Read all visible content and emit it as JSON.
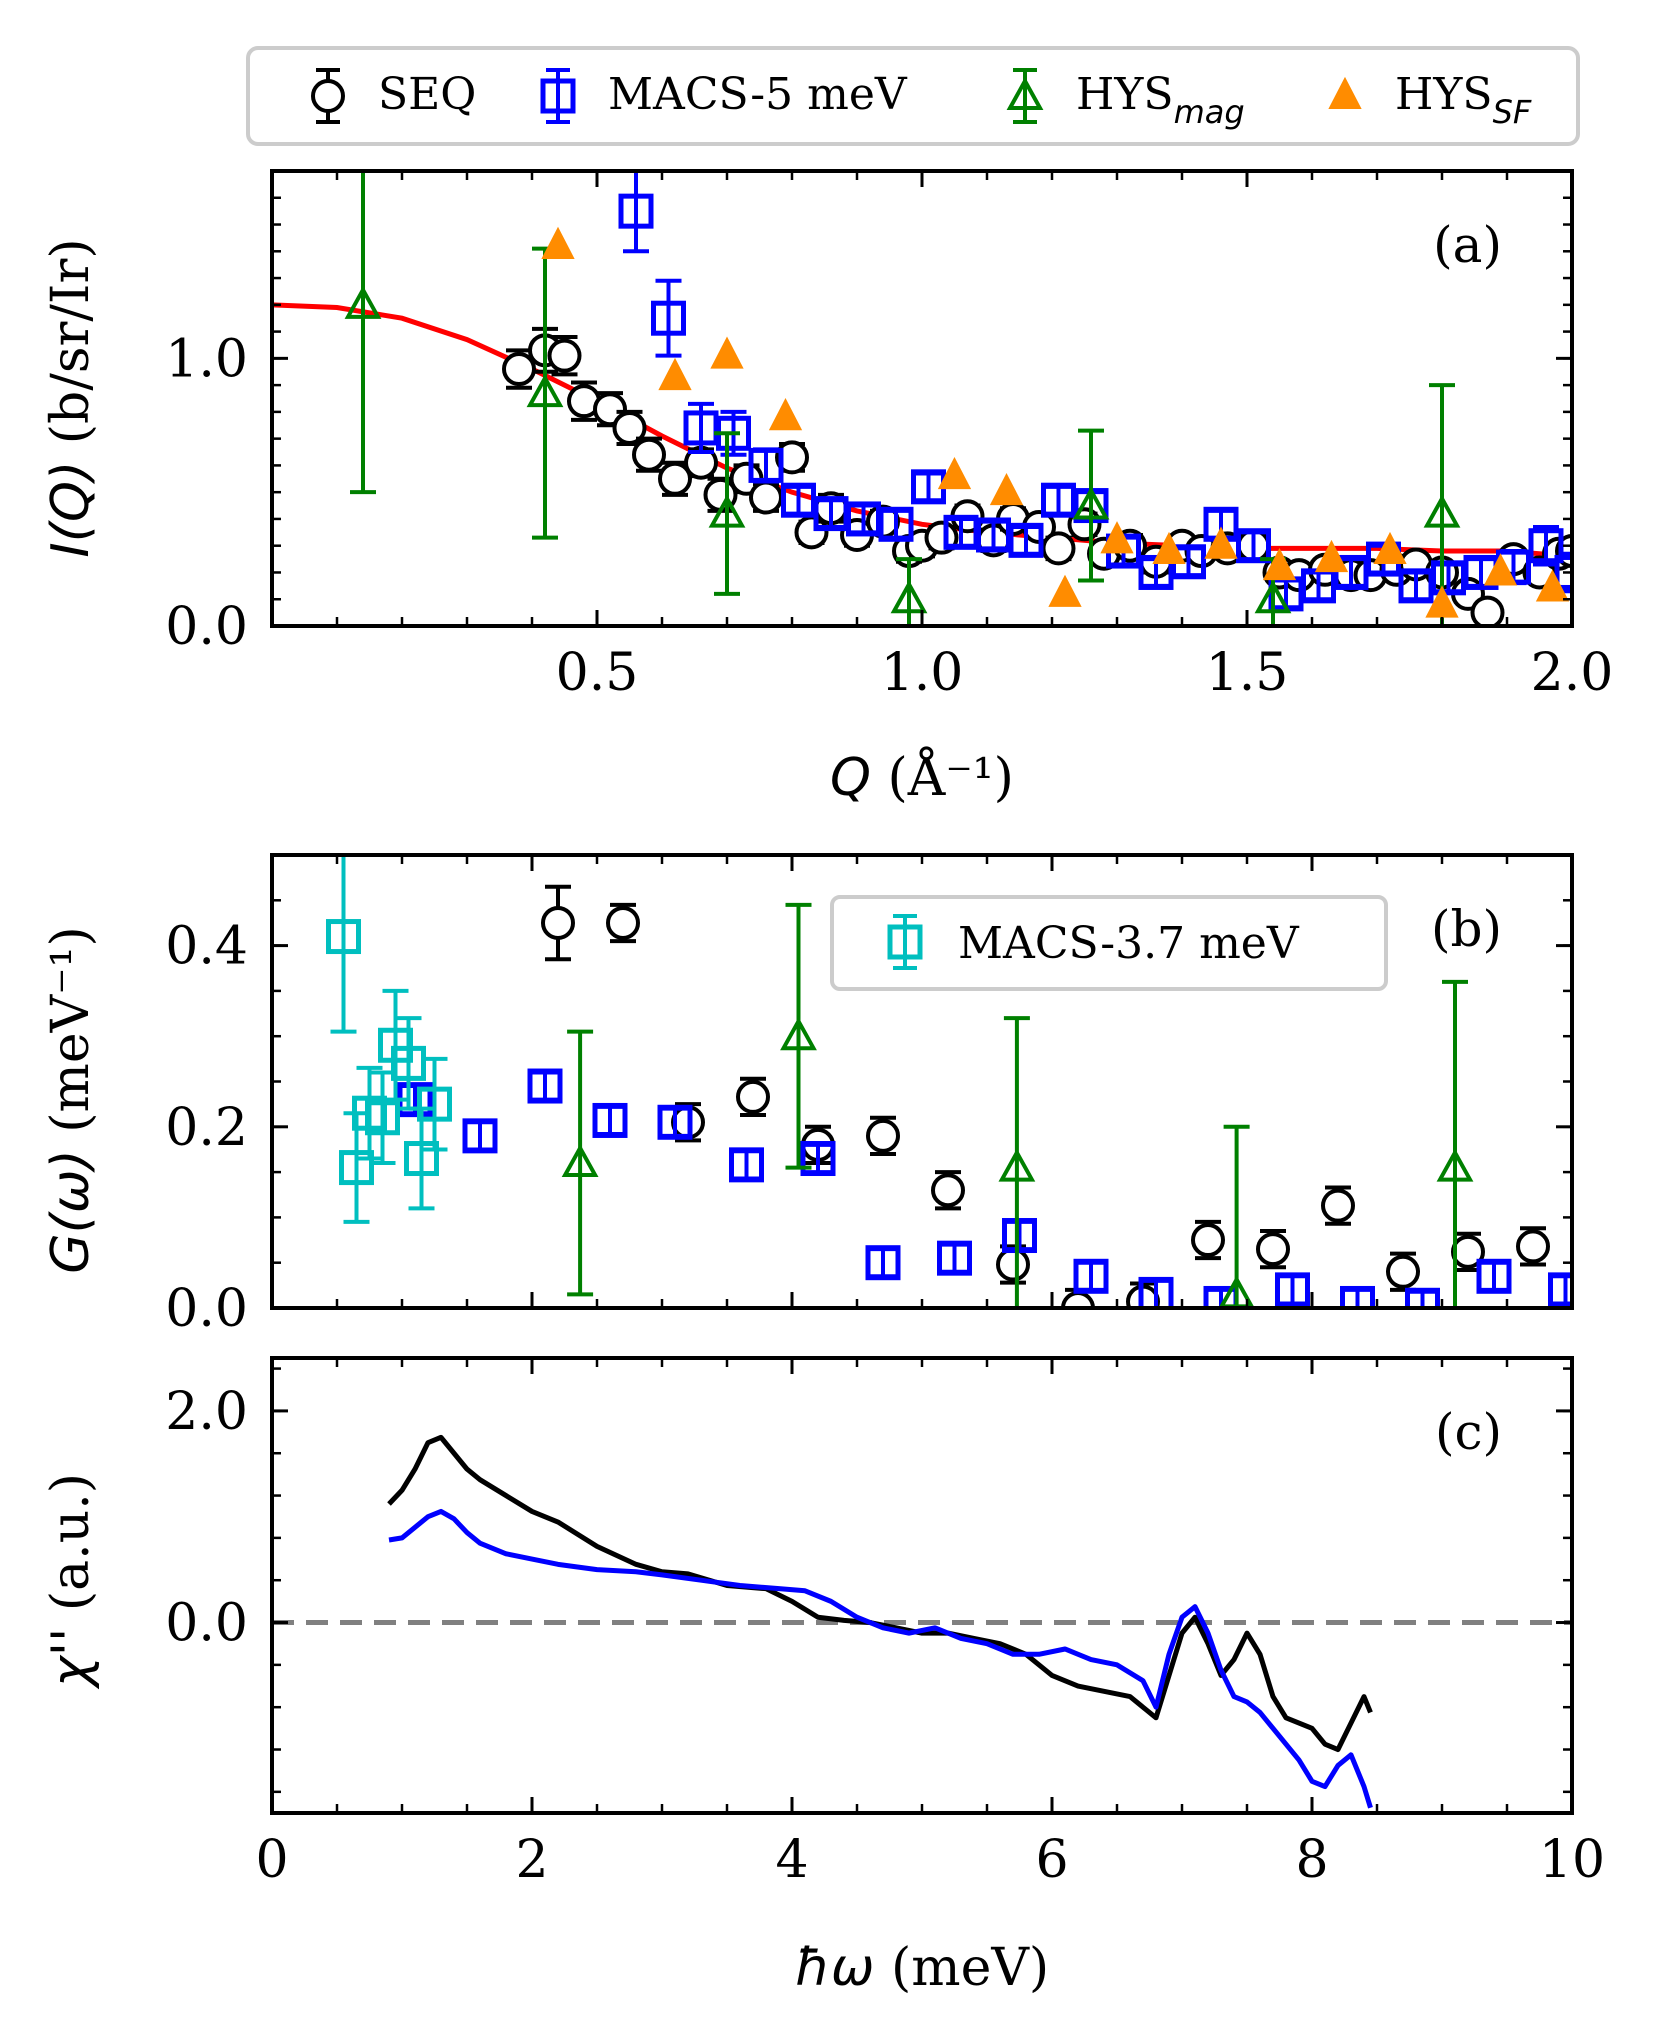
{
  "legend_top": {
    "entries": [
      {
        "label": "SEQ",
        "sub": "",
        "color": "#000000",
        "marker": "circle-open"
      },
      {
        "label": "MACS-5 meV",
        "sub": "",
        "color": "#0000ff",
        "marker": "square-open"
      },
      {
        "label": "HYS",
        "sub": "mag",
        "color": "#008000",
        "marker": "triangle-open"
      },
      {
        "label": "HYS",
        "sub": "SF",
        "color": "#ff8c00",
        "marker": "triangle-filled"
      }
    ]
  },
  "chart_data": [
    {
      "id": "panel-a",
      "type": "scatter",
      "panel_label": "(a)",
      "ylabel_parts": {
        "italic": "I(Q)",
        "rest": " (b/sr/Ir)"
      },
      "xlabel_parts": {
        "italic": "Q",
        "rest": " (Å⁻¹)"
      },
      "xlim": [
        0,
        2.0
      ],
      "ylim": [
        0,
        1.7
      ],
      "xticks": [
        {
          "v": 0.5,
          "label": "0.5"
        },
        {
          "v": 1.0,
          "label": "1.0"
        },
        {
          "v": 1.5,
          "label": "1.5"
        },
        {
          "v": 2.0,
          "label": "2.0"
        }
      ],
      "yticks": [
        {
          "v": 0.0,
          "label": "0.0"
        },
        {
          "v": 1.0,
          "label": "1.0"
        }
      ],
      "series": [
        {
          "name": "SEQ",
          "color": "#000000",
          "marker": "circle-open",
          "x": [
            0.38,
            0.42,
            0.45,
            0.48,
            0.52,
            0.55,
            0.58,
            0.62,
            0.66,
            0.69,
            0.73,
            0.76,
            0.8,
            0.83,
            0.86,
            0.9,
            0.94,
            0.98,
            1.0,
            1.03,
            1.07,
            1.11,
            1.14,
            1.18,
            1.21,
            1.25,
            1.28,
            1.32,
            1.36,
            1.4,
            1.43,
            1.47,
            1.51,
            1.55,
            1.58,
            1.62,
            1.66,
            1.69,
            1.73,
            1.76,
            1.8,
            1.84,
            1.87,
            1.91,
            1.95,
            1.98,
            2.0
          ],
          "y": [
            0.96,
            1.03,
            1.01,
            0.84,
            0.81,
            0.74,
            0.64,
            0.55,
            0.61,
            0.49,
            0.55,
            0.48,
            0.63,
            0.35,
            0.44,
            0.34,
            0.39,
            0.28,
            0.3,
            0.33,
            0.41,
            0.32,
            0.4,
            0.37,
            0.29,
            0.38,
            0.27,
            0.3,
            0.24,
            0.3,
            0.28,
            0.29,
            0.3,
            0.2,
            0.19,
            0.21,
            0.19,
            0.19,
            0.21,
            0.23,
            0.2,
            0.12,
            0.05,
            0.25,
            0.2,
            0.27,
            0.28
          ],
          "err": [
            0.07,
            0.08,
            0.07,
            0.07,
            0.06,
            0.06,
            0.06,
            0.06,
            0.05,
            0.06,
            0.05,
            0.05,
            0.05,
            0.04,
            0.05,
            0.04,
            0.04,
            0.04,
            0.04,
            0.04,
            0.04,
            0.04,
            0.04,
            0.04,
            0.04,
            0.04,
            0.04,
            0.04,
            0.04,
            0.03,
            0.03,
            0.03,
            0.03,
            0.03,
            0.03,
            0.03,
            0.03,
            0.03,
            0.03,
            0.03,
            0.03,
            0.03,
            0.03,
            0.03,
            0.03,
            0.03,
            0.03
          ]
        },
        {
          "name": "MACS-5 meV",
          "color": "#0000ff",
          "marker": "square-open",
          "x": [
            0.56,
            0.61,
            0.66,
            0.71,
            0.76,
            0.81,
            0.86,
            0.91,
            0.96,
            1.01,
            1.06,
            1.11,
            1.16,
            1.21,
            1.26,
            1.31,
            1.36,
            1.41,
            1.46,
            1.51,
            1.56,
            1.61,
            1.66,
            1.71,
            1.76,
            1.81,
            1.86,
            1.91,
            1.96,
            2.0
          ],
          "y": [
            1.55,
            1.15,
            0.74,
            0.72,
            0.6,
            0.47,
            0.42,
            0.4,
            0.38,
            0.52,
            0.35,
            0.34,
            0.32,
            0.47,
            0.45,
            0.28,
            0.2,
            0.24,
            0.38,
            0.3,
            0.12,
            0.15,
            0.2,
            0.25,
            0.15,
            0.18,
            0.2,
            0.22,
            0.3,
            0.2
          ],
          "err": [
            0.15,
            0.14,
            0.09,
            0.08,
            0.06,
            0.05,
            0.05,
            0.05,
            0.05,
            0.05,
            0.05,
            0.05,
            0.05,
            0.05,
            0.05,
            0.05,
            0.05,
            0.05,
            0.05,
            0.05,
            0.05,
            0.05,
            0.05,
            0.05,
            0.05,
            0.05,
            0.05,
            0.06,
            0.07,
            0.07
          ]
        },
        {
          "name": "HYS_mag",
          "color": "#008000",
          "marker": "triangle-open",
          "x": [
            0.14,
            0.42,
            0.7,
            0.98,
            1.26,
            1.54,
            1.8
          ],
          "y": [
            1.2,
            0.87,
            0.42,
            0.1,
            0.45,
            0.1,
            0.42
          ],
          "err": [
            0.7,
            0.54,
            0.3,
            0.15,
            0.28,
            0.15,
            0.48
          ]
        },
        {
          "name": "HYS_SF",
          "color": "#ff8c00",
          "marker": "triangle-filled",
          "x": [
            0.44,
            0.62,
            0.7,
            0.79,
            1.05,
            1.13,
            1.22,
            1.3,
            1.38,
            1.46,
            1.55,
            1.63,
            1.72,
            1.8,
            1.89,
            1.97
          ],
          "y": [
            1.42,
            0.93,
            1.01,
            0.78,
            0.56,
            0.5,
            0.12,
            0.32,
            0.28,
            0.3,
            0.22,
            0.25,
            0.28,
            0.08,
            0.2,
            0.14
          ],
          "err": [
            0.03,
            0.03,
            0.03,
            0.03,
            0.03,
            0.03,
            0.03,
            0.03,
            0.03,
            0.03,
            0.03,
            0.03,
            0.03,
            0.03,
            0.03,
            0.03
          ]
        }
      ],
      "fit": {
        "name": "fit",
        "color": "#ff0000",
        "x": [
          0.0,
          0.1,
          0.2,
          0.3,
          0.4,
          0.5,
          0.6,
          0.7,
          0.8,
          0.9,
          1.0,
          1.1,
          1.2,
          1.3,
          1.4,
          1.5,
          1.6,
          1.7,
          1.8,
          1.9,
          2.0
        ],
        "y": [
          1.2,
          1.19,
          1.15,
          1.07,
          0.96,
          0.84,
          0.71,
          0.59,
          0.5,
          0.43,
          0.38,
          0.35,
          0.33,
          0.31,
          0.3,
          0.29,
          0.29,
          0.29,
          0.28,
          0.28,
          0.26
        ]
      }
    },
    {
      "id": "panel-b",
      "type": "scatter",
      "panel_label": "(b)",
      "ylabel_parts": {
        "italic": "G(ω)",
        "rest": " (meV⁻¹)"
      },
      "xlim": [
        0,
        10
      ],
      "ylim": [
        0,
        0.5
      ],
      "xticks": [
        {
          "v": 2,
          "label": ""
        },
        {
          "v": 4,
          "label": ""
        },
        {
          "v": 6,
          "label": ""
        },
        {
          "v": 8,
          "label": ""
        },
        {
          "v": 10,
          "label": ""
        }
      ],
      "yticks": [
        {
          "v": 0.0,
          "label": "0.0"
        },
        {
          "v": 0.2,
          "label": "0.2"
        },
        {
          "v": 0.4,
          "label": "0.4"
        }
      ],
      "legend": {
        "label": "MACS-3.7 meV",
        "color": "#00bfbf"
      },
      "series": [
        {
          "name": "SEQ",
          "color": "#000000",
          "marker": "circle-open",
          "x": [
            2.2,
            2.7,
            3.2,
            3.7,
            4.2,
            4.7,
            5.2,
            5.7,
            6.2,
            6.7,
            7.2,
            7.7,
            8.2,
            8.7,
            9.2,
            9.7
          ],
          "y": [
            0.425,
            0.425,
            0.205,
            0.233,
            0.18,
            0.19,
            0.13,
            0.048,
            0.0,
            0.007,
            0.075,
            0.065,
            0.113,
            0.04,
            0.062,
            0.068
          ],
          "err": [
            0.04,
            0.02,
            0.02,
            0.02,
            0.02,
            0.02,
            0.02,
            0.02,
            0.02,
            0.02,
            0.02,
            0.02,
            0.02,
            0.02,
            0.02,
            0.02
          ]
        },
        {
          "name": "MACS-5 meV",
          "color": "#0000ff",
          "marker": "square-open",
          "x": [
            1.1,
            1.6,
            2.1,
            2.6,
            3.1,
            3.65,
            4.2,
            4.7,
            5.25,
            5.75,
            6.3,
            6.8,
            7.3,
            7.85,
            8.35,
            8.85,
            9.4,
            9.95
          ],
          "y": [
            0.23,
            0.19,
            0.245,
            0.207,
            0.205,
            0.158,
            0.165,
            0.05,
            0.055,
            0.08,
            0.035,
            0.015,
            0.005,
            0.02,
            0.005,
            0.003,
            0.035,
            0.02
          ],
          "err": [
            0.015,
            0.015,
            0.015,
            0.015,
            0.015,
            0.015,
            0.015,
            0.015,
            0.015,
            0.015,
            0.015,
            0.015,
            0.015,
            0.015,
            0.015,
            0.015,
            0.015,
            0.015
          ]
        },
        {
          "name": "MACS-3.7 meV",
          "color": "#00bfbf",
          "marker": "square-open",
          "x": [
            0.55,
            0.65,
            0.75,
            0.85,
            0.95,
            1.05,
            1.15,
            1.25
          ],
          "y": [
            0.41,
            0.155,
            0.215,
            0.21,
            0.29,
            0.27,
            0.165,
            0.225
          ],
          "err": [
            0.105,
            0.06,
            0.05,
            0.05,
            0.06,
            0.05,
            0.055,
            0.05
          ]
        },
        {
          "name": "HYS_mag",
          "color": "#008000",
          "marker": "triangle-open",
          "x": [
            2.37,
            4.05,
            5.73,
            7.42,
            9.1
          ],
          "y": [
            0.16,
            0.3,
            0.155,
            0.015,
            0.155
          ],
          "err": [
            0.145,
            0.145,
            0.165,
            0.185,
            0.205
          ]
        }
      ]
    },
    {
      "id": "panel-c",
      "type": "line",
      "panel_label": "(c)",
      "ylabel_parts": {
        "italic": "χ''",
        "rest": " (a.u.)"
      },
      "xlabel_parts": {
        "italic": "ħω",
        "rest": " (meV)"
      },
      "xlim": [
        0,
        10
      ],
      "ylim": [
        -1.8,
        2.5
      ],
      "xticks": [
        {
          "v": 0,
          "label": "0"
        },
        {
          "v": 2,
          "label": "2"
        },
        {
          "v": 4,
          "label": "4"
        },
        {
          "v": 6,
          "label": "6"
        },
        {
          "v": 8,
          "label": "8"
        },
        {
          "v": 10,
          "label": "10"
        }
      ],
      "yticks": [
        {
          "v": 0.0,
          "label": "0.0"
        },
        {
          "v": 2.0,
          "label": "2.0"
        }
      ],
      "hline": {
        "y": 0.0,
        "color": "#808080"
      },
      "series": [
        {
          "name": "SEQ",
          "color": "#000000",
          "x": [
            0.9,
            1.0,
            1.1,
            1.2,
            1.3,
            1.4,
            1.5,
            1.6,
            1.8,
            2.0,
            2.2,
            2.5,
            2.8,
            3.0,
            3.2,
            3.5,
            3.8,
            4.0,
            4.2,
            4.4,
            4.6,
            4.8,
            5.0,
            5.2,
            5.4,
            5.6,
            5.8,
            6.0,
            6.2,
            6.4,
            6.6,
            6.8,
            7.0,
            7.1,
            7.2,
            7.3,
            7.4,
            7.5,
            7.6,
            7.7,
            7.8,
            7.9,
            8.0,
            8.1,
            8.2,
            8.3,
            8.4,
            8.45
          ],
          "y": [
            1.12,
            1.25,
            1.45,
            1.7,
            1.75,
            1.6,
            1.45,
            1.35,
            1.2,
            1.05,
            0.95,
            0.72,
            0.55,
            0.48,
            0.46,
            0.35,
            0.32,
            0.2,
            0.05,
            0.02,
            0.0,
            -0.05,
            -0.1,
            -0.1,
            -0.15,
            -0.2,
            -0.3,
            -0.5,
            -0.6,
            -0.65,
            -0.7,
            -0.9,
            -0.1,
            0.05,
            -0.2,
            -0.5,
            -0.35,
            -0.1,
            -0.3,
            -0.7,
            -0.9,
            -0.95,
            -1.0,
            -1.15,
            -1.2,
            -0.95,
            -0.7,
            -0.85
          ]
        },
        {
          "name": "MACS-5 meV",
          "color": "#0000ff",
          "x": [
            0.9,
            1.0,
            1.1,
            1.2,
            1.3,
            1.4,
            1.5,
            1.6,
            1.8,
            2.0,
            2.2,
            2.5,
            2.8,
            3.0,
            3.3,
            3.6,
            3.9,
            4.1,
            4.3,
            4.5,
            4.7,
            4.9,
            5.1,
            5.3,
            5.5,
            5.7,
            5.9,
            6.1,
            6.3,
            6.5,
            6.7,
            6.8,
            6.9,
            7.0,
            7.1,
            7.2,
            7.3,
            7.4,
            7.5,
            7.6,
            7.7,
            7.8,
            7.9,
            8.0,
            8.1,
            8.2,
            8.3,
            8.4,
            8.45
          ],
          "y": [
            0.78,
            0.8,
            0.9,
            1.0,
            1.05,
            0.98,
            0.85,
            0.75,
            0.65,
            0.6,
            0.55,
            0.5,
            0.48,
            0.45,
            0.4,
            0.35,
            0.32,
            0.3,
            0.2,
            0.05,
            -0.05,
            -0.1,
            -0.05,
            -0.15,
            -0.2,
            -0.3,
            -0.3,
            -0.25,
            -0.35,
            -0.4,
            -0.55,
            -0.8,
            -0.3,
            0.05,
            0.15,
            -0.1,
            -0.45,
            -0.7,
            -0.75,
            -0.85,
            -1.0,
            -1.15,
            -1.3,
            -1.5,
            -1.55,
            -1.35,
            -1.25,
            -1.55,
            -1.75
          ]
        }
      ]
    }
  ]
}
